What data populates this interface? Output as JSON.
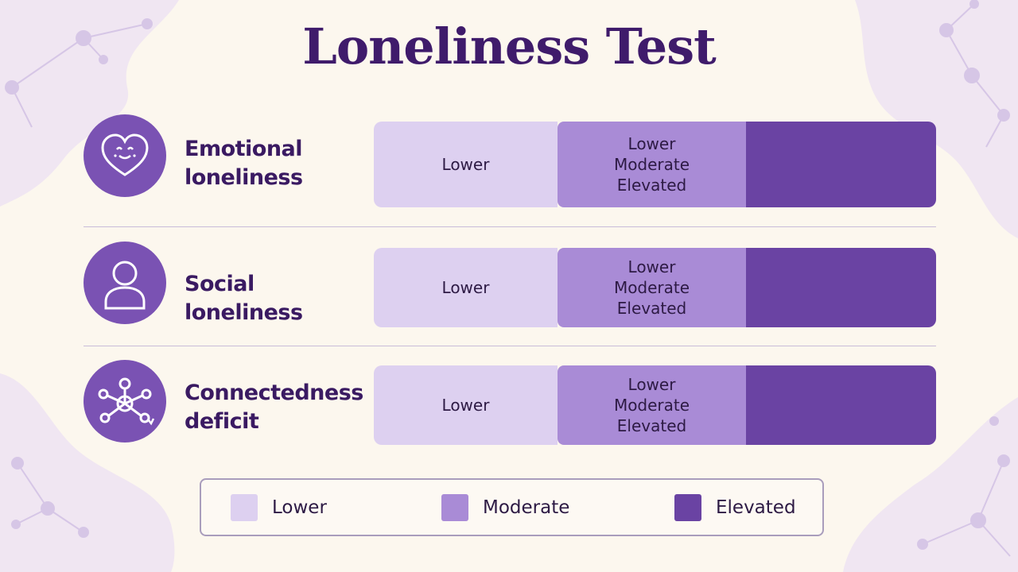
{
  "title": "Loneliness Test",
  "colors": {
    "lower": "#ddd0f0",
    "moderate": "#a98bd6",
    "elevated": "#6a43a3",
    "icon_bg": "#7a52b3",
    "title": "#3f1b6b"
  },
  "rows": [
    {
      "icon": "heart-face-icon",
      "label_lines": [
        "Emotional",
        "loneliness"
      ],
      "lower_text": "Lower",
      "mid_lines": [
        "Lower",
        "Moderate",
        "Elevated"
      ]
    },
    {
      "icon": "person-icon",
      "label_lines": [
        "Social loneliness"
      ],
      "lower_text": "Lower",
      "mid_lines": [
        "Lower",
        "Moderate",
        "Elevated"
      ]
    },
    {
      "icon": "network-icon",
      "label_lines": [
        "Connectedness",
        "deficit"
      ],
      "lower_text": "Lower",
      "mid_lines": [
        "Lower",
        "Moderate",
        "Elevated"
      ]
    }
  ],
  "legend": [
    {
      "label": "Lower",
      "color": "#ddd0f0"
    },
    {
      "label": "Moderate",
      "color": "#a98bd6"
    },
    {
      "label": "Elevated",
      "color": "#6a43a3"
    }
  ]
}
